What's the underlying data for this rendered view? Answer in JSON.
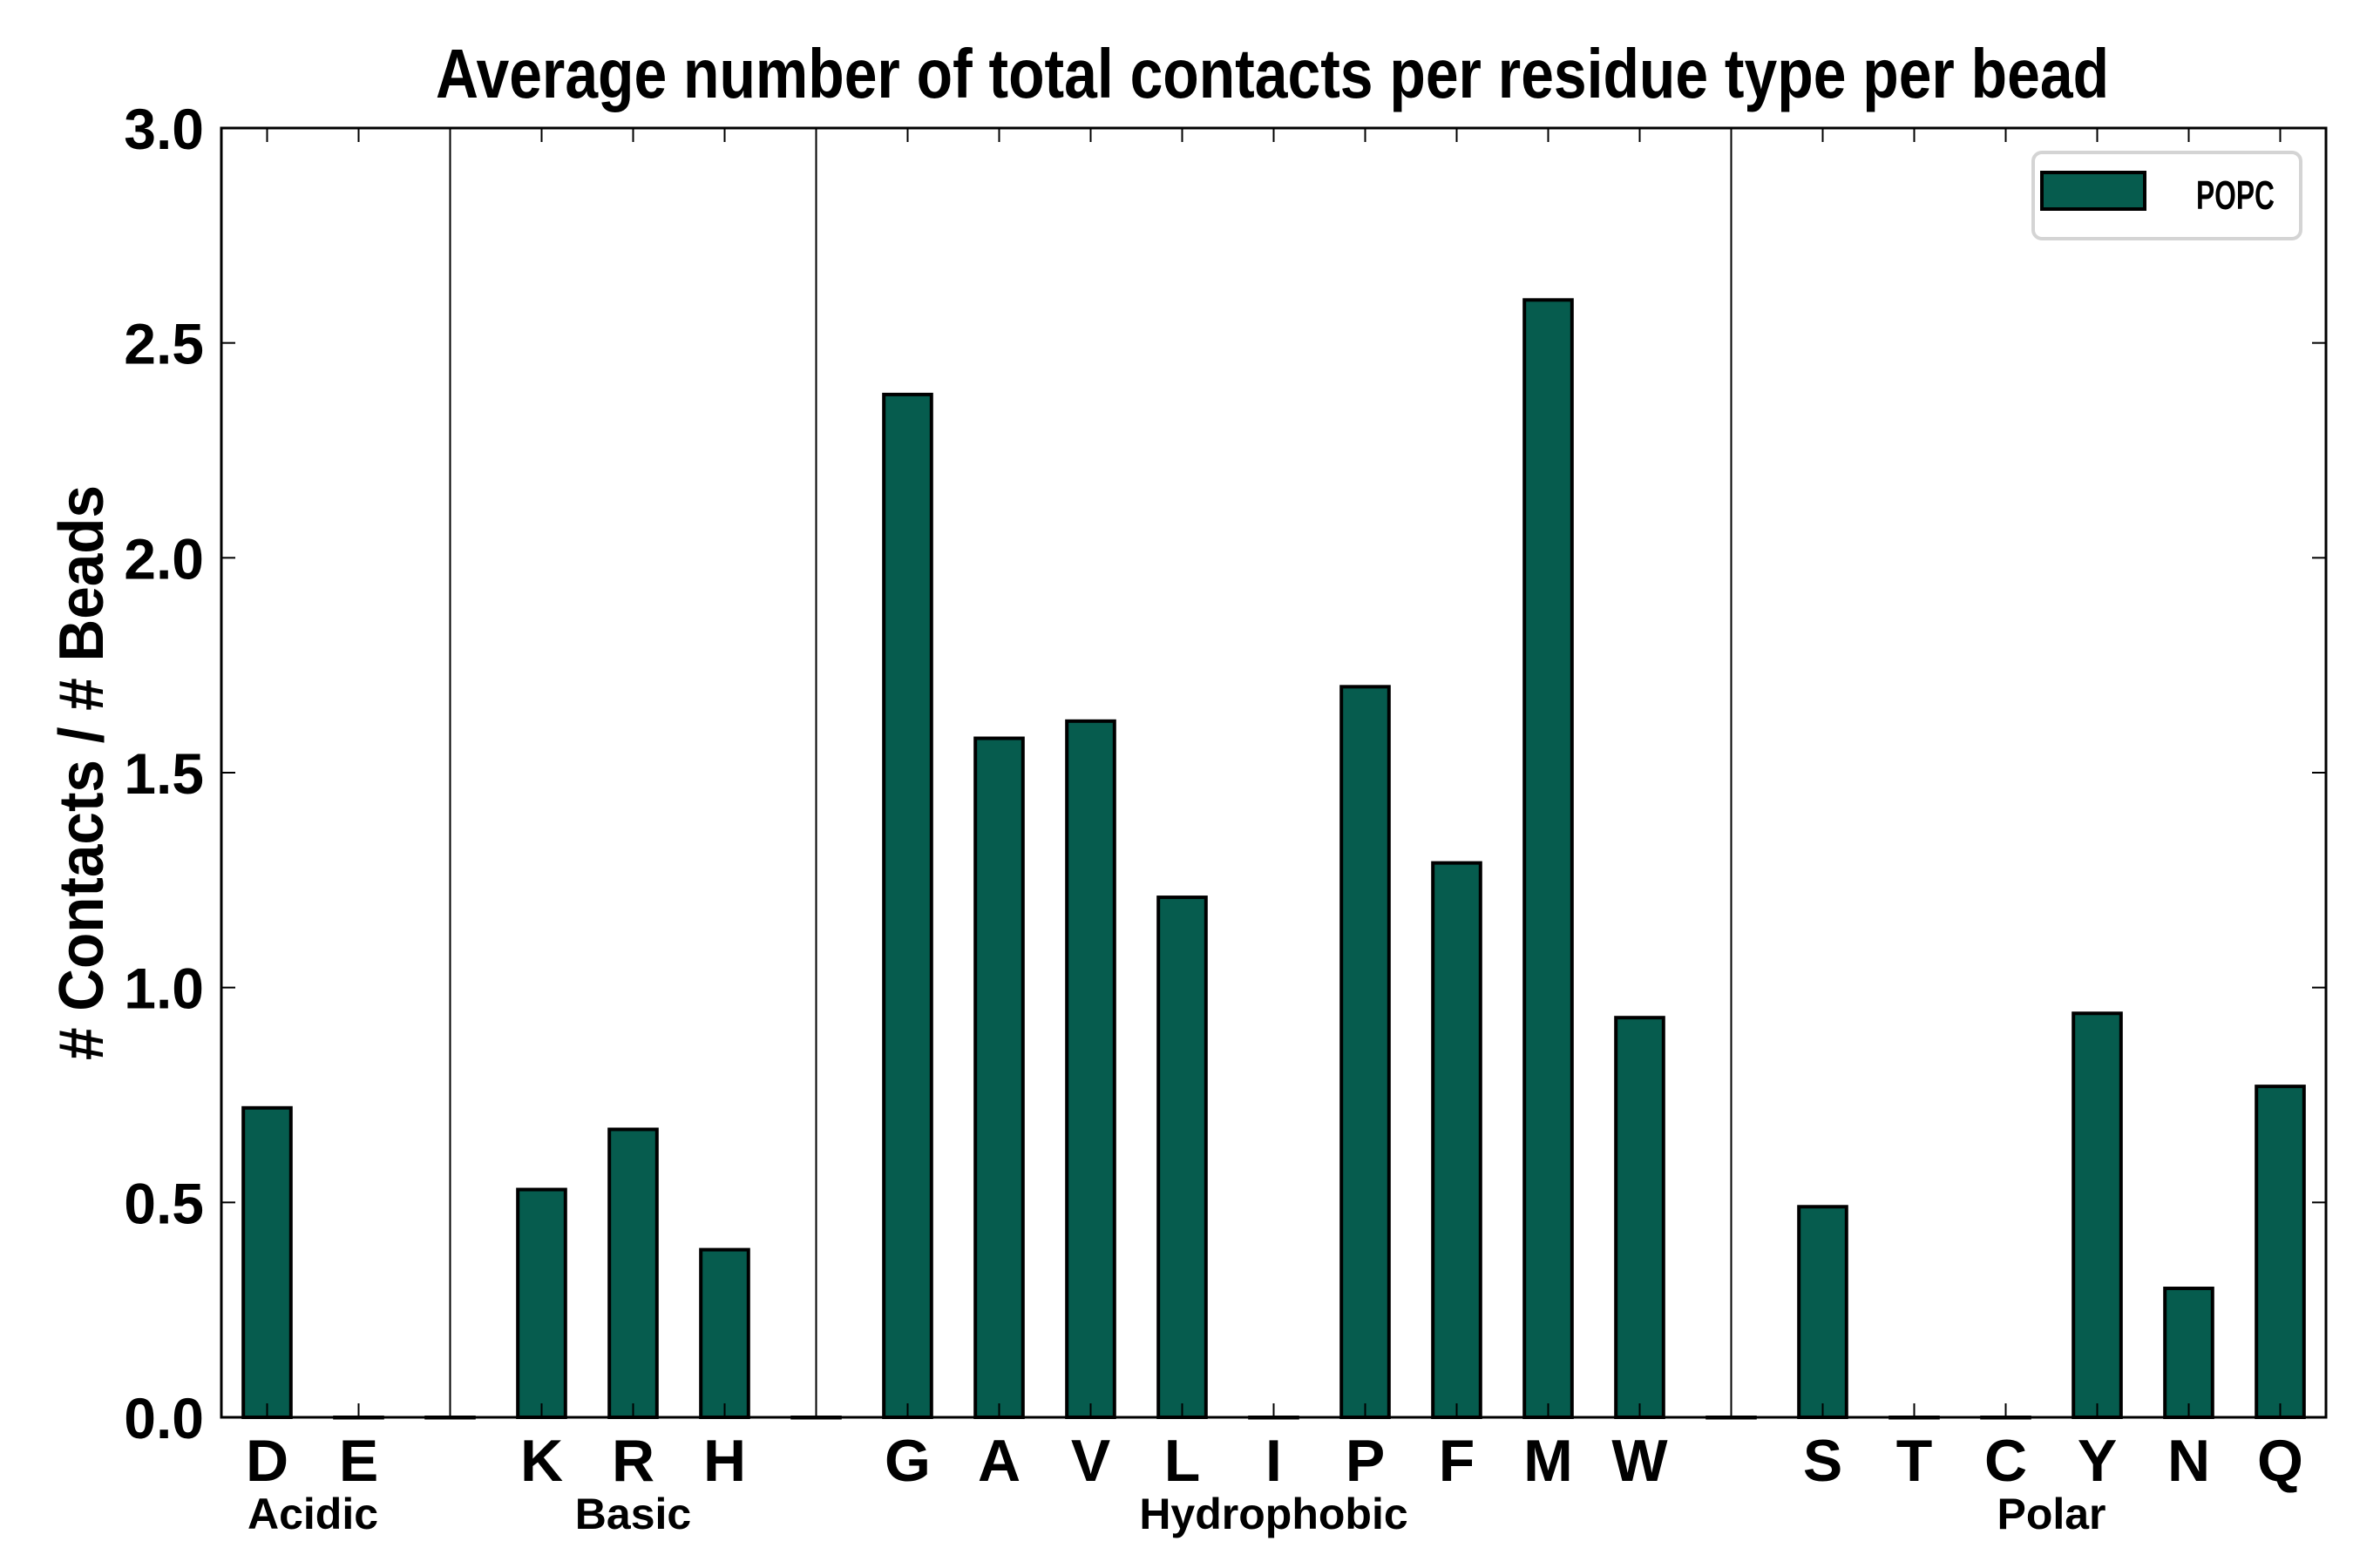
{
  "chart_data": {
    "type": "bar",
    "title": "Average number of total contacts per residue type per bead",
    "xlabel": "",
    "ylabel": "# Contacts / # Beads",
    "ylim": [
      0,
      3.0
    ],
    "yticks": [
      "0.0",
      "0.5",
      "1.0",
      "1.5",
      "2.0",
      "2.5",
      "3.0"
    ],
    "ytick_values": [
      0,
      0.5,
      1.0,
      1.5,
      2.0,
      2.5,
      3.0
    ],
    "categories": [
      "D",
      "E",
      "",
      "K",
      "R",
      "H",
      "",
      "G",
      "A",
      "V",
      "L",
      "I",
      "P",
      "F",
      "M",
      "W",
      "",
      "S",
      "T",
      "C",
      "Y",
      "N",
      "Q"
    ],
    "series": [
      {
        "name": "POPC",
        "color": "#065c4e",
        "values": [
          0.72,
          0.0,
          0.0,
          0.53,
          0.67,
          0.39,
          0.0,
          2.38,
          1.58,
          1.62,
          1.21,
          0.0,
          1.7,
          1.29,
          2.6,
          0.93,
          0.0,
          0.49,
          0.0,
          0.0,
          0.94,
          0.3,
          0.77
        ]
      }
    ],
    "groups": [
      {
        "label": "Acidic",
        "center_index": 0.5
      },
      {
        "label": "Basic",
        "center_index": 4
      },
      {
        "label": "Hydrophobic",
        "center_index": 11
      },
      {
        "label": "Polar",
        "center_index": 19.5
      }
    ],
    "separators_at_index": [
      2,
      6,
      16
    ],
    "legend": {
      "entries": [
        "POPC"
      ],
      "placement": "top-right"
    },
    "grid": false
  }
}
